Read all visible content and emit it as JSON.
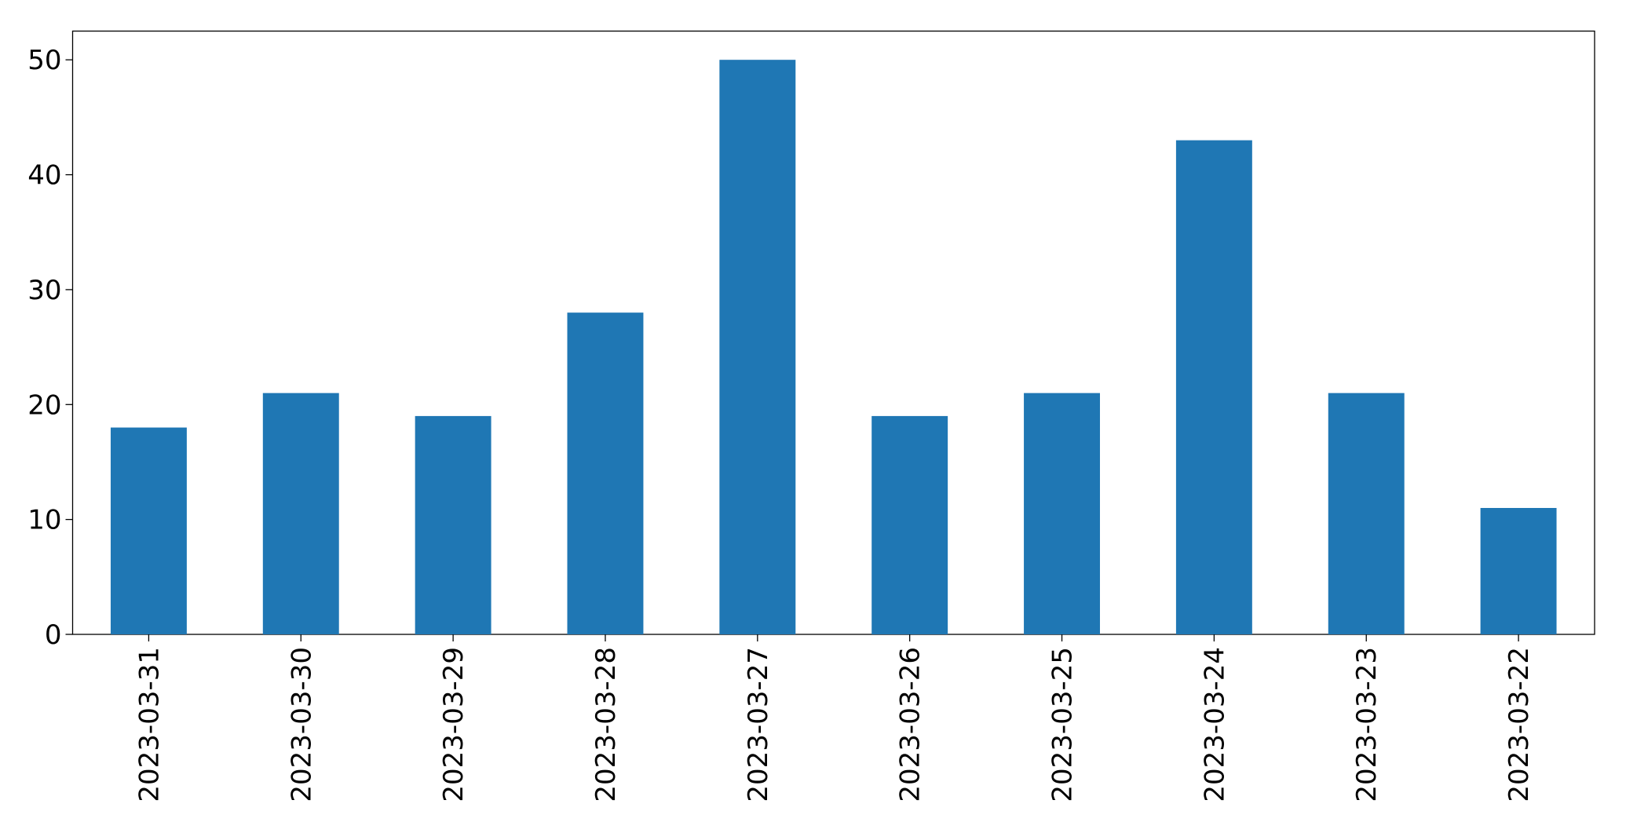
{
  "chart_data": {
    "type": "bar",
    "categories": [
      "2023-03-31",
      "2023-03-30",
      "2023-03-29",
      "2023-03-28",
      "2023-03-27",
      "2023-03-26",
      "2023-03-25",
      "2023-03-24",
      "2023-03-23",
      "2023-03-22"
    ],
    "values": [
      18,
      21,
      19,
      28,
      50,
      19,
      21,
      43,
      21,
      11
    ],
    "color": "#1f77b4",
    "ylim": [
      0,
      52.5
    ],
    "yticks": [
      0,
      10,
      20,
      30,
      40,
      50
    ],
    "grid": false
  }
}
